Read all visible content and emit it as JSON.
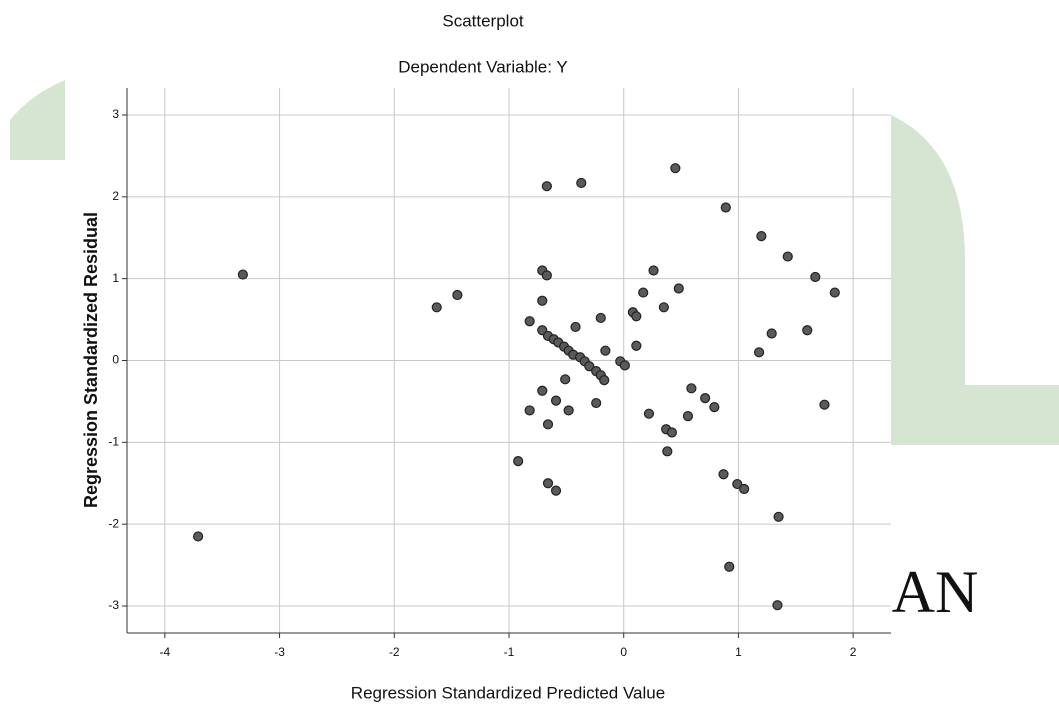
{
  "chart_data": {
    "type": "scatter",
    "title": "Scatterplot",
    "subtitle": "Dependent Variable: Y",
    "x_label": "Regression Standardized Predicted Value",
    "y_label": "Regression Standardized Residual",
    "watermark_text": "AN",
    "color": "#5a5a5a",
    "grid": true,
    "xlim": [
      -4.33,
      2.33
    ],
    "ylim": [
      -3.33,
      3.33
    ],
    "xticks": [
      -4,
      -3,
      -2,
      -1,
      0,
      1,
      2
    ],
    "yticks": [
      -3,
      -2,
      -1,
      0,
      1,
      2,
      3
    ],
    "x": [
      -3.32,
      -3.71,
      -1.63,
      -1.45,
      -0.92,
      -0.67,
      -0.37,
      0.45,
      0.89,
      1.2,
      1.43,
      1.67,
      1.84,
      -0.71,
      -0.67,
      0.26,
      0.48,
      0.17,
      -0.71,
      -0.82,
      -0.71,
      -0.66,
      -0.61,
      -0.57,
      -0.52,
      -0.48,
      -0.44,
      -0.38,
      -0.34,
      -0.3,
      -0.24,
      -0.2,
      -0.17,
      -0.42,
      -0.2,
      -0.16,
      -0.03,
      0.01,
      0.08,
      0.11,
      0.35,
      0.11,
      1.18,
      1.29,
      1.6,
      1.75,
      -0.71,
      -0.51,
      -0.59,
      -0.82,
      -0.48,
      -0.24,
      -0.66,
      0.22,
      0.59,
      0.71,
      0.79,
      0.56,
      0.37,
      0.42,
      0.38,
      0.87,
      0.99,
      1.05,
      1.35,
      -0.66,
      -0.59,
      0.92,
      1.34
    ],
    "y": [
      1.05,
      -2.15,
      0.65,
      0.8,
      -1.23,
      2.13,
      2.17,
      2.35,
      1.87,
      1.52,
      1.27,
      1.02,
      0.83,
      1.1,
      1.04,
      1.1,
      0.88,
      0.83,
      0.73,
      0.48,
      0.37,
      0.3,
      0.26,
      0.22,
      0.17,
      0.12,
      0.07,
      0.04,
      -0.01,
      -0.07,
      -0.13,
      -0.18,
      -0.24,
      0.41,
      0.52,
      0.12,
      -0.01,
      -0.06,
      0.59,
      0.54,
      0.65,
      0.18,
      0.1,
      0.33,
      0.37,
      -0.54,
      -0.37,
      -0.23,
      -0.49,
      -0.61,
      -0.61,
      -0.52,
      -0.78,
      -0.65,
      -0.34,
      -0.46,
      -0.57,
      -0.68,
      -0.84,
      -0.88,
      -1.11,
      -1.39,
      -1.51,
      -1.57,
      -1.91,
      -1.5,
      -1.59,
      -2.52,
      -2.99
    ]
  }
}
